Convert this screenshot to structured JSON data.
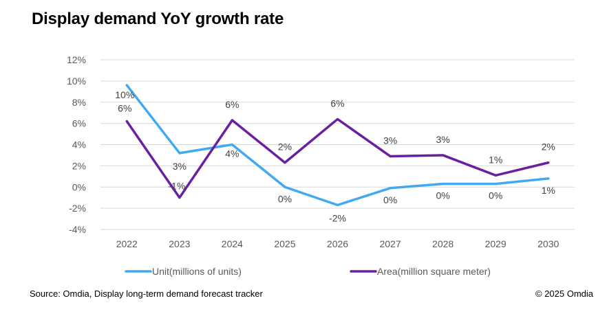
{
  "chart_data": {
    "type": "line",
    "title": "Display demand YoY growth rate",
    "xlabel": "",
    "ylabel": "",
    "categories": [
      "2022",
      "2023",
      "2024",
      "2025",
      "2026",
      "2027",
      "2028",
      "2029",
      "2030"
    ],
    "ylim": [
      -4,
      12
    ],
    "yticks": [
      -4,
      -2,
      0,
      2,
      4,
      6,
      8,
      10,
      12
    ],
    "ytick_labels": [
      "-4%",
      "-2%",
      "0%",
      "2%",
      "4%",
      "6%",
      "8%",
      "10%",
      "12%"
    ],
    "grid": true,
    "legend_position": "bottom",
    "series": [
      {
        "name": "Unit(millions of units)",
        "color": "#41A9F2",
        "values": [
          9.6,
          3.2,
          4.0,
          0.0,
          -1.7,
          -0.1,
          0.3,
          0.3,
          0.8
        ],
        "data_labels": [
          "10%",
          "3%",
          "4%",
          "0%",
          "-2%",
          "0%",
          "0%",
          "0%",
          "1%"
        ]
      },
      {
        "name": "Area(million square meter)",
        "color": "#6A1FA0",
        "values": [
          6.2,
          -1.0,
          6.3,
          2.3,
          6.4,
          2.9,
          3.0,
          1.1,
          2.3
        ],
        "data_labels": [
          "6%",
          "-1%",
          "6%",
          "2%",
          "6%",
          "3%",
          "3%",
          "1%",
          "2%"
        ]
      }
    ]
  },
  "footer": {
    "source": "Source: Omdia, Display long-term demand forecast tracker",
    "copyright": "© 2025 Omdia"
  }
}
